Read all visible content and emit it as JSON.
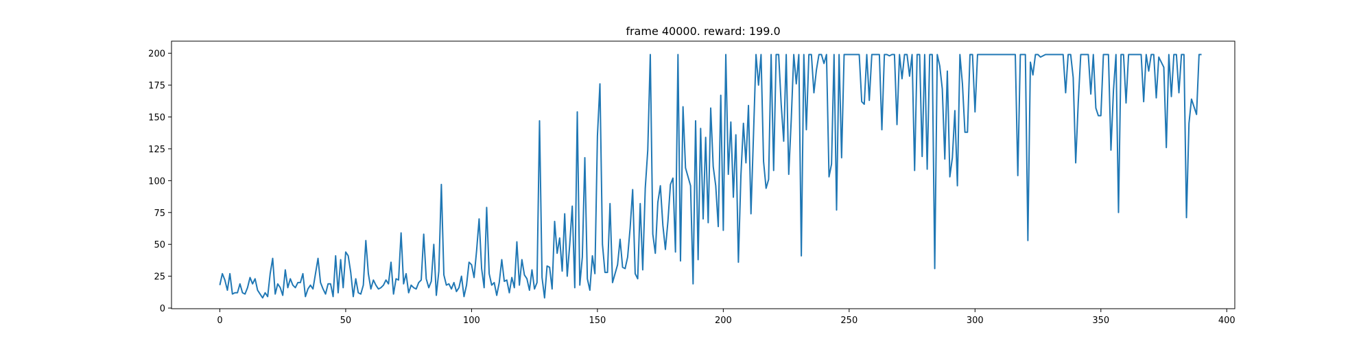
{
  "chart_data": {
    "type": "line",
    "title": "frame 40000. reward: 199.0",
    "xlabel": "",
    "ylabel": "",
    "xlim": [
      -19.2,
      403.2
    ],
    "ylim": [
      -0.5,
      209.5
    ],
    "xticks": [
      0,
      50,
      100,
      150,
      200,
      250,
      300,
      350,
      400
    ],
    "yticks": [
      0,
      25,
      50,
      75,
      100,
      125,
      150,
      175,
      200
    ],
    "grid": false,
    "legend": "none",
    "series": [
      {
        "name": "",
        "color": "#1f77b4",
        "values": [
          18,
          27,
          22,
          14,
          27,
          11,
          12,
          12,
          19,
          12,
          11,
          16,
          24,
          19,
          23,
          14,
          11,
          8,
          12,
          9,
          27,
          39,
          11,
          19,
          16,
          10,
          30,
          16,
          23,
          18,
          16,
          20,
          20,
          27,
          9,
          15,
          18,
          15,
          27,
          39,
          20,
          15,
          11,
          19,
          19,
          9,
          41,
          12,
          38,
          16,
          44,
          41,
          28,
          9,
          23,
          12,
          11,
          18,
          53,
          27,
          15,
          22,
          18,
          15,
          16,
          18,
          22,
          19,
          36,
          11,
          23,
          22,
          59,
          19,
          27,
          12,
          18,
          16,
          15,
          20,
          22,
          58,
          23,
          16,
          21,
          50,
          10,
          29,
          97,
          26,
          18,
          19,
          15,
          20,
          13,
          16,
          25,
          9,
          18,
          36,
          34,
          24,
          45,
          70,
          31,
          16,
          79,
          27,
          18,
          20,
          10,
          20,
          38,
          21,
          22,
          12,
          24,
          16,
          52,
          18,
          38,
          26,
          23,
          14,
          30,
          15,
          20,
          147,
          24,
          8,
          33,
          32,
          15,
          68,
          43,
          55,
          29,
          74,
          25,
          50,
          80,
          16,
          154,
          18,
          40,
          118,
          23,
          14,
          41,
          27,
          135,
          176,
          50,
          28,
          28,
          82,
          20,
          27,
          34,
          54,
          32,
          31,
          40,
          63,
          93,
          27,
          23,
          82,
          30,
          94,
          124,
          199,
          58,
          43,
          83,
          96,
          65,
          46,
          68,
          97,
          102,
          44,
          199,
          37,
          158,
          110,
          103,
          96,
          19,
          147,
          38,
          141,
          70,
          134,
          67,
          157,
          111,
          96,
          64,
          167,
          61,
          199,
          105,
          146,
          87,
          136,
          36,
          104,
          145,
          114,
          159,
          74,
          136,
          199,
          175,
          199,
          115,
          94,
          101,
          199,
          108,
          199,
          199,
          160,
          131,
          199,
          105,
          148,
          199,
          176,
          199,
          41,
          199,
          140,
          199,
          199,
          169,
          187,
          199,
          199,
          192,
          199,
          103,
          113,
          199,
          77,
          199,
          118,
          199,
          199,
          199,
          199,
          199,
          199,
          199,
          162,
          160,
          199,
          163,
          199,
          199,
          199,
          199,
          140,
          199,
          199,
          198,
          199,
          199,
          144,
          199,
          180,
          199,
          199,
          182,
          199,
          108,
          199,
          199,
          119,
          199,
          109,
          199,
          199,
          31,
          199,
          190,
          172,
          117,
          186,
          103,
          118,
          155,
          96,
          199,
          176,
          138,
          138,
          199,
          199,
          154,
          199,
          199,
          199,
          199,
          199,
          199,
          199,
          199,
          199,
          199,
          199,
          199,
          199,
          199,
          199,
          199,
          104,
          199,
          199,
          199,
          53,
          193,
          183,
          199,
          199,
          197,
          198,
          199,
          199,
          199,
          199,
          199,
          199,
          199,
          199,
          169,
          199,
          199,
          181,
          114,
          161,
          199,
          199,
          199,
          199,
          168,
          199,
          157,
          151,
          151,
          199,
          199,
          199,
          124,
          171,
          199,
          75,
          199,
          199,
          161,
          199,
          199,
          199,
          199,
          199,
          199,
          162,
          199,
          186,
          199,
          199,
          165,
          197,
          193,
          189,
          126,
          199,
          166,
          199,
          199,
          169,
          199,
          199,
          71,
          145,
          164,
          158,
          152,
          199,
          199
        ]
      }
    ]
  }
}
